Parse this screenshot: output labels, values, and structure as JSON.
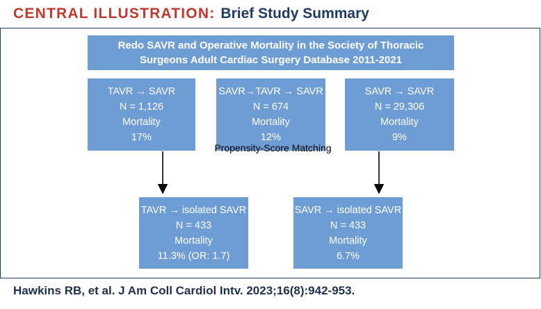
{
  "header": {
    "label": "CENTRAL ILLUSTRATION:",
    "subtitle": "Brief Study Summary"
  },
  "diagram": {
    "title_lines": [
      "Redo SAVR and Operative Mortality in the Society of Thoracic",
      "Surgeons Adult Cardiac Surgery Database 2011-2021"
    ],
    "cohorts": [
      {
        "group": "TAVR → SAVR",
        "n": "N = 1,126",
        "metric": "Mortality",
        "value": "17%"
      },
      {
        "group": "SAVR→TAVR → SAVR",
        "n": "N = 674",
        "metric": "Mortality",
        "value": "12%"
      },
      {
        "group": "SAVR → SAVR",
        "n": "N = 29,306",
        "metric": "Mortality",
        "value": "9%"
      }
    ],
    "method_label": "Propensity-Score Matching",
    "matched": [
      {
        "group": "TAVR → isolated SAVR",
        "n": "N = 433",
        "metric": "Mortality",
        "value": "11.3% (OR: 1.7)"
      },
      {
        "group": "SAVR → isolated SAVR",
        "n": "N = 433",
        "metric": "Mortality",
        "value": "6.7%"
      }
    ],
    "colors": {
      "box": "#6e9dd6",
      "header_label": "#c0392b",
      "header_subtitle": "#1f3b63"
    }
  },
  "citation": "Hawkins RB, et al. J Am Coll Cardiol Intv. 2023;16(8):942-953."
}
